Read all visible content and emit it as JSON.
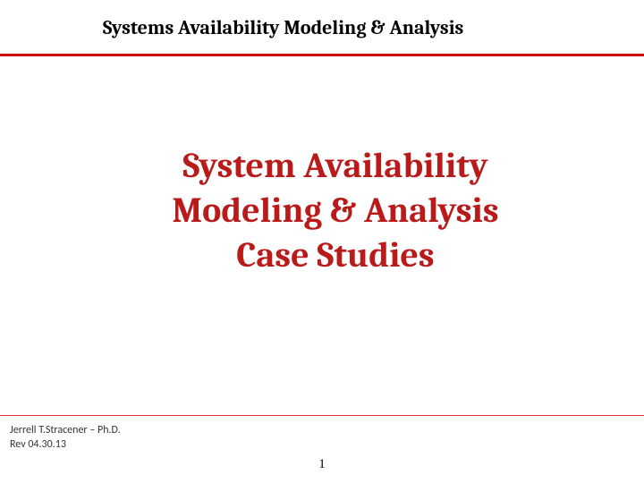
{
  "header": {
    "title": "Systems Availability Modeling & Analysis"
  },
  "main": {
    "title_line1": "System Availability",
    "title_line2": "Modeling & Analysis",
    "title_line3": "Case Studies"
  },
  "footer": {
    "author": "Jerrell T.Stracener – Ph.D.",
    "revision": "Rev 04.30.13",
    "page_number": "1"
  },
  "style": {
    "header_color": "#000000",
    "header_fontsize": 22,
    "main_title_color": "#b91a1a",
    "main_title_fontsize": 40,
    "divider_color": "#cc0000",
    "background_color": "#ffffff",
    "footer_fontsize": 12,
    "page_number_fontsize": 15
  }
}
